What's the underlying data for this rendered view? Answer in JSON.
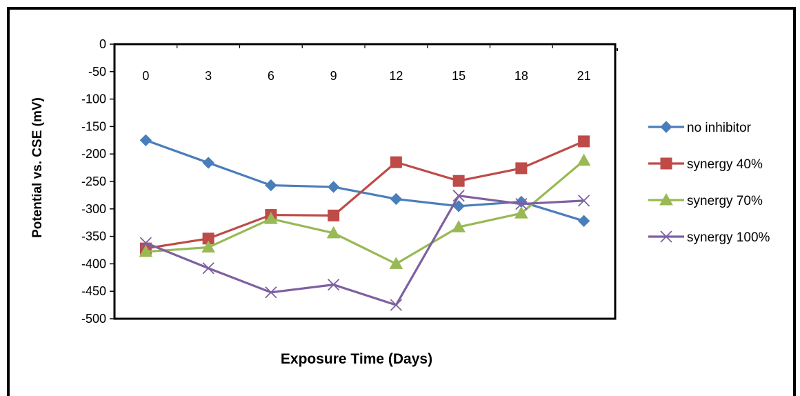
{
  "chart_data": {
    "type": "line",
    "title": "",
    "xlabel": "Exposure Time (Days)",
    "ylabel": "Potential vs. CSE (mV)",
    "categories": [
      "0",
      "3",
      "6",
      "9",
      "12",
      "15",
      "18",
      "21"
    ],
    "ylim": [
      -500,
      0
    ],
    "y_ticks": [
      0,
      -50,
      -100,
      -150,
      -200,
      -250,
      -300,
      -350,
      -400,
      -450,
      -500
    ],
    "x_tick_position": "top",
    "grid": false,
    "legend_position": "right",
    "series": [
      {
        "name": "no inhibitor",
        "color": "#4a7ebb",
        "marker": "diamond",
        "values": [
          -175,
          -216,
          -257,
          -260,
          -282,
          -295,
          -287,
          -322
        ]
      },
      {
        "name": "synergy 40%",
        "color": "#be4b48",
        "marker": "square",
        "values": [
          -372,
          -354,
          -311,
          -312,
          -215,
          -249,
          -226,
          -177
        ]
      },
      {
        "name": "synergy 70%",
        "color": "#98b954",
        "marker": "triangle",
        "values": [
          -378,
          -370,
          -318,
          -344,
          -400,
          -333,
          -308,
          -212
        ]
      },
      {
        "name": "synergy 100%",
        "color": "#7d60a0",
        "marker": "x",
        "values": [
          -362,
          -408,
          -452,
          -438,
          -475,
          -276,
          -291,
          -285
        ]
      }
    ]
  }
}
